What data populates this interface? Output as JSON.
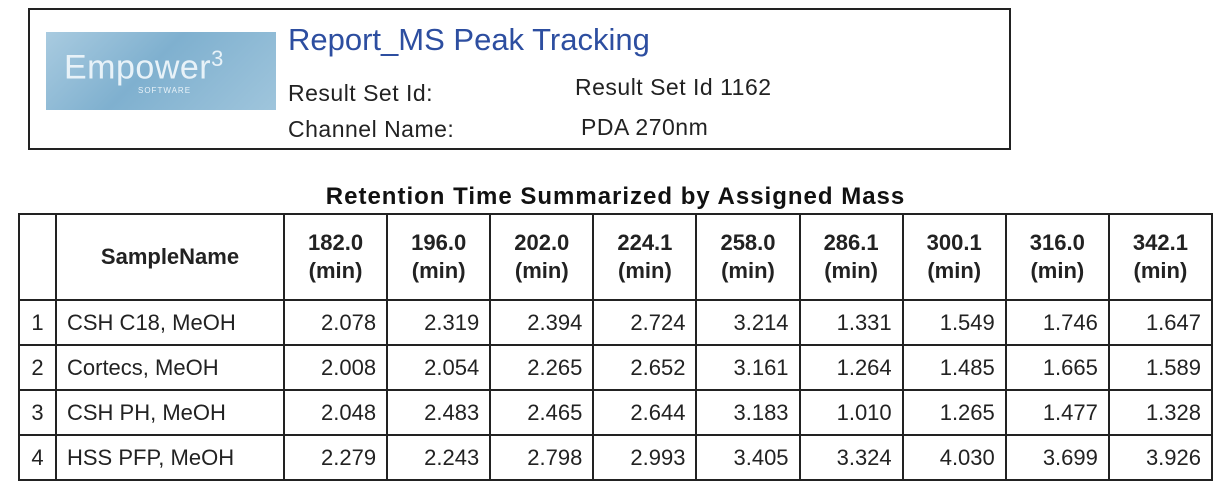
{
  "header": {
    "logo": {
      "brand": "Empower",
      "version": "3",
      "tagline": "SOFTWARE"
    },
    "title": "Report_MS Peak Tracking",
    "fields": [
      {
        "label": "Result Set Id:",
        "value": "Result Set Id 1162"
      },
      {
        "label": "Channel Name:",
        "value": "PDA 270nm"
      }
    ]
  },
  "table": {
    "title": "Retention Time Summarized by Assigned Mass",
    "name_header": "SampleName",
    "columns": [
      {
        "mass": "182.0",
        "unit": "(min)"
      },
      {
        "mass": "196.0",
        "unit": "(min)"
      },
      {
        "mass": "202.0",
        "unit": "(min)"
      },
      {
        "mass": "224.1",
        "unit": "(min)"
      },
      {
        "mass": "258.0",
        "unit": "(min)"
      },
      {
        "mass": "286.1",
        "unit": "(min)"
      },
      {
        "mass": "300.1",
        "unit": "(min)"
      },
      {
        "mass": "316.0",
        "unit": "(min)"
      },
      {
        "mass": "342.1",
        "unit": "(min)"
      }
    ],
    "rows": [
      {
        "index": 1,
        "name": "CSH C18, MeOH",
        "values": [
          "2.078",
          "2.319",
          "2.394",
          "2.724",
          "3.214",
          "1.331",
          "1.549",
          "1.746",
          "1.647"
        ]
      },
      {
        "index": 2,
        "name": "Cortecs, MeOH",
        "values": [
          "2.008",
          "2.054",
          "2.265",
          "2.652",
          "3.161",
          "1.264",
          "1.485",
          "1.665",
          "1.589"
        ]
      },
      {
        "index": 3,
        "name": "CSH PH, MeOH",
        "values": [
          "2.048",
          "2.483",
          "2.465",
          "2.644",
          "3.183",
          "1.010",
          "1.265",
          "1.477",
          "1.328"
        ]
      },
      {
        "index": 4,
        "name": "HSS PFP, MeOH",
        "values": [
          "2.279",
          "2.243",
          "2.798",
          "2.993",
          "3.405",
          "3.324",
          "4.030",
          "3.699",
          "3.926"
        ]
      }
    ]
  }
}
